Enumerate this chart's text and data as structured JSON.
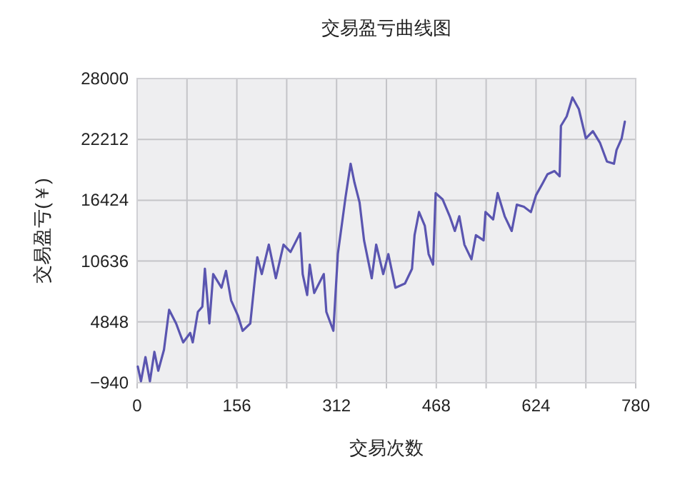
{
  "chart_data": {
    "type": "line",
    "title": "交易盈亏曲线图",
    "xlabel": "交易次数",
    "ylabel": "交易盈亏(￥)",
    "xlim": [
      0,
      780
    ],
    "ylim": [
      -940,
      28000
    ],
    "xticks": [
      0,
      {
        "value": 78,
        "label": null
      },
      156,
      {
        "value": 234,
        "label": null
      },
      312,
      {
        "value": 390,
        "label": null
      },
      468,
      {
        "value": 546,
        "label": null
      },
      624,
      {
        "value": 702,
        "label": null
      },
      780
    ],
    "yticks": [
      -940,
      4848,
      10636,
      16424,
      22212,
      28000
    ],
    "grid": true,
    "marker": "none",
    "line_style": "solid",
    "series": [
      {
        "color": "#5a55b0",
        "x": [
          1,
          6,
          13,
          20,
          27,
          33,
          42,
          50,
          61,
          72,
          83,
          87,
          95,
          102,
          106,
          113,
          119,
          132,
          139,
          147,
          158,
          165,
          177,
          184,
          188,
          195,
          206,
          217,
          229,
          240,
          255,
          259,
          266,
          270,
          277,
          292,
          296,
          307,
          314,
          326,
          334,
          340,
          348,
          355,
          367,
          374,
          385,
          393,
          404,
          419,
          430,
          434,
          441,
          450,
          456,
          463,
          467,
          478,
          489,
          497,
          504,
          512,
          523,
          530,
          542,
          545,
          557,
          564,
          575,
          586,
          594,
          605,
          616,
          624,
          635,
          642,
          653,
          661,
          663,
          672,
          681,
          691,
          702,
          713,
          724,
          735,
          746,
          750,
          758,
          763
        ],
        "values": [
          600,
          -800,
          1500,
          -800,
          2000,
          200,
          2200,
          6000,
          4700,
          2900,
          3800,
          2900,
          5800,
          6300,
          9900,
          4700,
          9400,
          8100,
          9700,
          6900,
          5400,
          4000,
          4700,
          8800,
          11000,
          9400,
          12200,
          9000,
          12200,
          11500,
          13300,
          9400,
          7400,
          10300,
          7600,
          9400,
          5800,
          4000,
          11300,
          16700,
          19900,
          18100,
          16200,
          12600,
          9000,
          12200,
          9400,
          11300,
          8100,
          8500,
          9900,
          13100,
          15300,
          14000,
          11300,
          10300,
          17100,
          16500,
          14900,
          13500,
          14900,
          12200,
          10800,
          13100,
          12600,
          15300,
          14600,
          17100,
          14900,
          13500,
          16000,
          15800,
          15300,
          16900,
          18100,
          18900,
          19200,
          18700,
          23500,
          24400,
          26200,
          25100,
          22300,
          23000,
          21900,
          20100,
          19900,
          21200,
          22300,
          23900
        ]
      }
    ]
  }
}
